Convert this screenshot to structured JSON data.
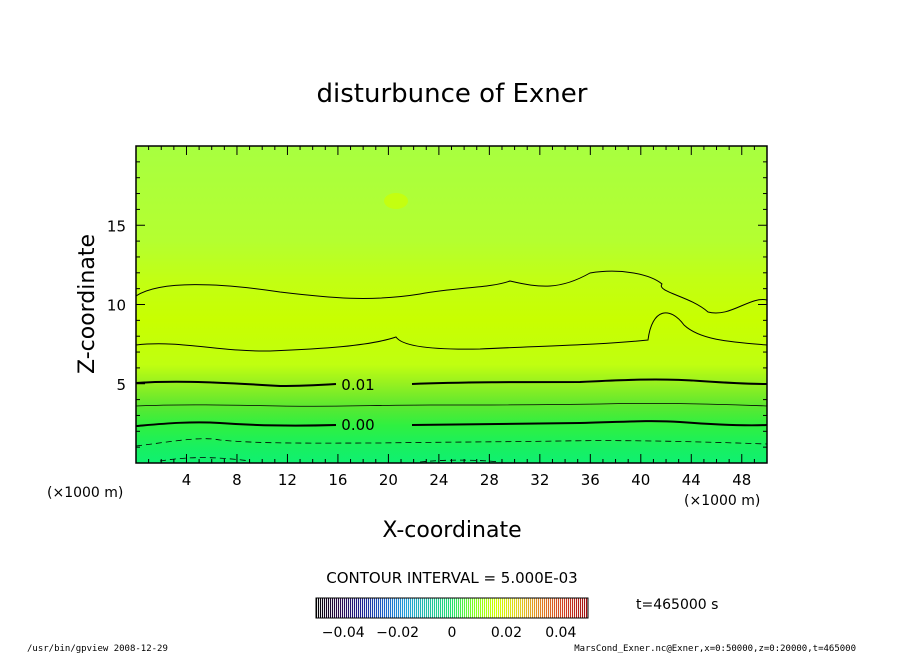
{
  "chart_data": {
    "type": "contour",
    "title": "disturbunce of Exner",
    "xlabel": "X-coordinate",
    "ylabel": "Z-coordinate",
    "x_unit": "(×1000 m)",
    "y_unit": "(×1000 m)",
    "xlim": [
      0,
      50
    ],
    "ylim": [
      0,
      20
    ],
    "x_ticks": [
      4,
      8,
      12,
      16,
      20,
      24,
      28,
      32,
      36,
      40,
      44,
      48
    ],
    "y_ticks": [
      5,
      10,
      15
    ],
    "contour_interval_text": "CONTOUR INTERVAL = 5.000E-03",
    "contour_labels": [
      {
        "text": "0.01",
        "x": 17.5,
        "z": 5.0
      },
      {
        "text": "0.00",
        "x": 17.5,
        "z": 2.4
      }
    ],
    "colorbar": {
      "ticks": [
        "−0.04",
        "−0.02",
        "0",
        "0.02",
        "0.04"
      ],
      "values": [
        -0.04,
        -0.02,
        0,
        0.02,
        0.04
      ],
      "range": [
        -0.05,
        0.05
      ],
      "colors": [
        "#000000",
        "#2a0a4a",
        "#1a2090",
        "#1a60c8",
        "#20a0d8",
        "#20c0a0",
        "#20e070",
        "#80ff20",
        "#d0ff00",
        "#e0d020",
        "#e08020",
        "#d04020",
        "#a01010"
      ]
    },
    "time_label": "t=465000 s",
    "colors": {
      "top": "#b8ff20",
      "band_upper": "#c8ff00",
      "band_mid": "#7af020",
      "band_low": "#30ff40",
      "bottom": "#10f070"
    }
  },
  "footer": {
    "left": "/usr/bin/gpview  2008-12-29",
    "right": "MarsCond_Exner.nc@Exner,x=0:50000,z=0:20000,t=465000"
  }
}
